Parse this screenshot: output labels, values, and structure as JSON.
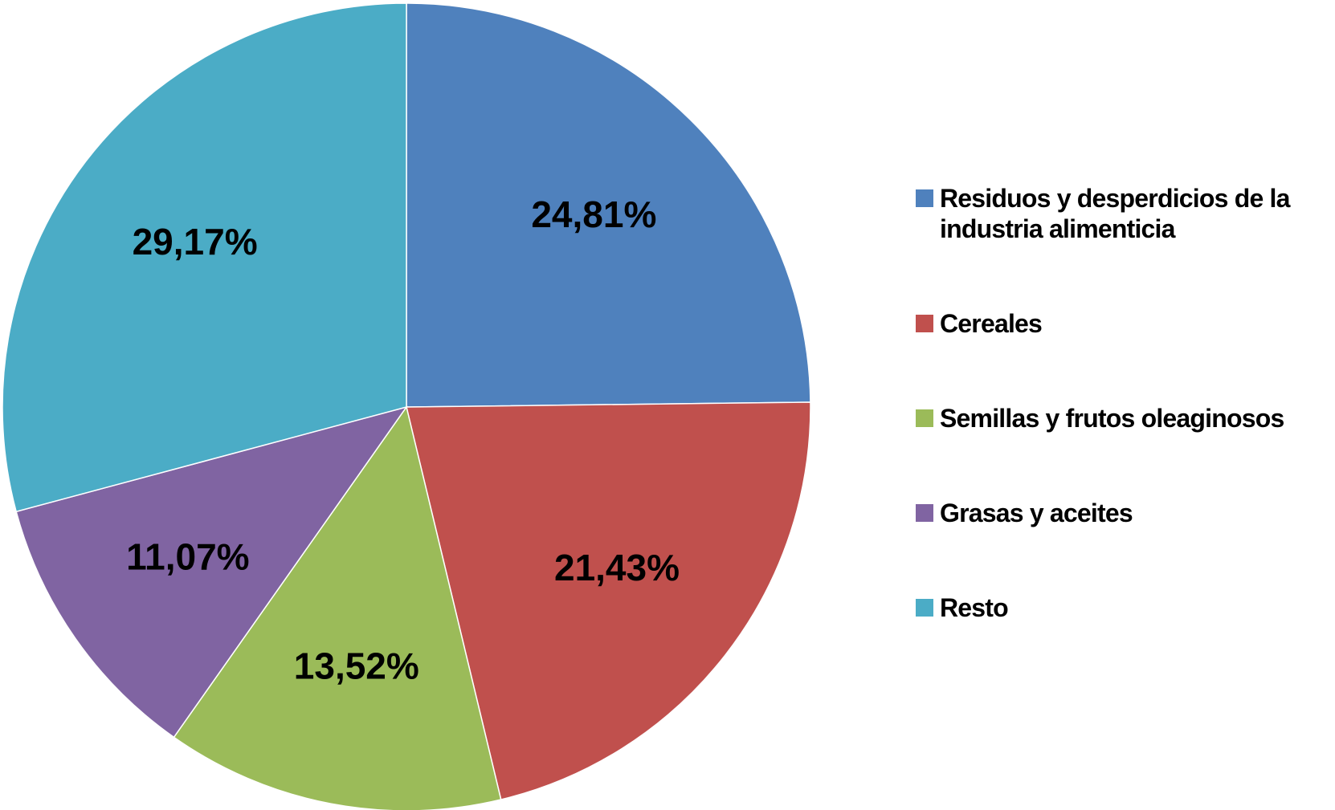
{
  "chart_data": {
    "type": "pie",
    "categories": [
      "Residuos y desperdicios de la industria alimenticia",
      "Cereales",
      "Semillas y frutos oleaginosos",
      "Grasas y aceites",
      "Resto"
    ],
    "values": [
      24.81,
      21.43,
      13.52,
      11.07,
      29.17
    ],
    "value_labels": [
      "24,81%",
      "21,43%",
      "13,52%",
      "11,07%",
      "29,17%"
    ],
    "colors": [
      "#4f81bd",
      "#c0504d",
      "#9bbb59",
      "#8064a2",
      "#4bacc6"
    ],
    "legend": "right"
  }
}
